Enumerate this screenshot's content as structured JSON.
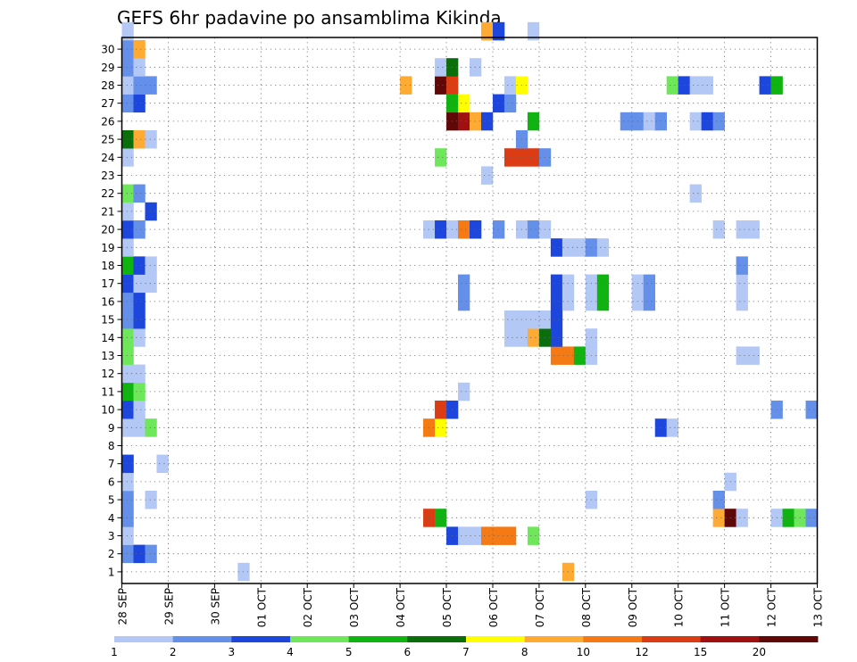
{
  "chart_data": {
    "type": "heatmap",
    "title": "GEFS 6hr padavine po ansamblima Kikinda",
    "xlabel": "",
    "ylabel": "",
    "x_tick_labels": [
      "28 SEP",
      "29 SEP",
      "30 SEP",
      "01 OCT",
      "02 OCT",
      "03 OCT",
      "04 OCT",
      "05 OCT",
      "06 OCT",
      "07 OCT",
      "08 OCT",
      "09 OCT",
      "10 OCT",
      "11 OCT",
      "12 OCT",
      "13 OCT"
    ],
    "y_tick_labels": [
      "1",
      "2",
      "3",
      "4",
      "5",
      "6",
      "7",
      "8",
      "9",
      "10",
      "11",
      "12",
      "13",
      "14",
      "15",
      "16",
      "17",
      "18",
      "19",
      "20",
      "21",
      "22",
      "23",
      "24",
      "25",
      "26",
      "27",
      "28",
      "29",
      "30"
    ],
    "x_range_steps": [
      0,
      60
    ],
    "y_range": [
      0,
      30
    ],
    "grid": true,
    "colorbar": {
      "labels": [
        "1",
        "2",
        "3",
        "4",
        "5",
        "6",
        "7",
        "8",
        "10",
        "12",
        "15",
        "20"
      ],
      "colors": [
        "#b4c8f5",
        "#6490ea",
        "#1c46dc",
        "#6ee85a",
        "#10b410",
        "#0a6e0a",
        "#ffff00",
        "#ffaa32",
        "#f57a14",
        "#dc3c14",
        "#a01010",
        "#600808"
      ]
    },
    "cells": [
      {
        "m": 1,
        "t": 0,
        "c": 1
      },
      {
        "m": 1,
        "t": 1,
        "c": 2
      },
      {
        "m": 1,
        "t": 2,
        "c": 1
      },
      {
        "m": 2,
        "t": 0,
        "c": 0
      },
      {
        "m": 2,
        "t": 28,
        "c": 2
      },
      {
        "m": 2,
        "t": 29,
        "c": 0
      },
      {
        "m": 2,
        "t": 30,
        "c": 0
      },
      {
        "m": 2,
        "t": 31,
        "c": 8
      },
      {
        "m": 2,
        "t": 32,
        "c": 8
      },
      {
        "m": 2,
        "t": 33,
        "c": 8
      },
      {
        "m": 2,
        "t": 35,
        "c": 3
      },
      {
        "m": 3,
        "t": 0,
        "c": 1
      },
      {
        "m": 3,
        "t": 26,
        "c": 9
      },
      {
        "m": 3,
        "t": 27,
        "c": 4
      },
      {
        "m": 3,
        "t": 51,
        "c": 7
      },
      {
        "m": 3,
        "t": 52,
        "c": 11
      },
      {
        "m": 3,
        "t": 53,
        "c": 0
      },
      {
        "m": 3,
        "t": 56,
        "c": 0
      },
      {
        "m": 3,
        "t": 57,
        "c": 4
      },
      {
        "m": 3,
        "t": 58,
        "c": 3
      },
      {
        "m": 3,
        "t": 59,
        "c": 1
      },
      {
        "m": 4,
        "t": 0,
        "c": 1
      },
      {
        "m": 4,
        "t": 2,
        "c": 0
      },
      {
        "m": 4,
        "t": 40,
        "c": 0
      },
      {
        "m": 4,
        "t": 51,
        "c": 1
      },
      {
        "m": 5,
        "t": 0,
        "c": 0
      },
      {
        "m": 5,
        "t": 52,
        "c": 0
      },
      {
        "m": 6,
        "t": 0,
        "c": 2
      },
      {
        "m": 6,
        "t": 3,
        "c": 0
      },
      {
        "m": 8,
        "t": 0,
        "c": 0
      },
      {
        "m": 8,
        "t": 1,
        "c": 0
      },
      {
        "m": 8,
        "t": 2,
        "c": 3
      },
      {
        "m": 8,
        "t": 26,
        "c": 8
      },
      {
        "m": 8,
        "t": 27,
        "c": 6
      },
      {
        "m": 8,
        "t": 46,
        "c": 2
      },
      {
        "m": 8,
        "t": 47,
        "c": 0
      },
      {
        "m": 9,
        "t": 0,
        "c": 2
      },
      {
        "m": 9,
        "t": 1,
        "c": 0
      },
      {
        "m": 9,
        "t": 27,
        "c": 9
      },
      {
        "m": 9,
        "t": 28,
        "c": 2
      },
      {
        "m": 9,
        "t": 56,
        "c": 1
      },
      {
        "m": 9,
        "t": 59,
        "c": 1
      },
      {
        "m": 10,
        "t": 0,
        "c": 4
      },
      {
        "m": 10,
        "t": 1,
        "c": 3
      },
      {
        "m": 10,
        "t": 29,
        "c": 0
      },
      {
        "m": 11,
        "t": 0,
        "c": 0
      },
      {
        "m": 11,
        "t": 1,
        "c": 0
      },
      {
        "m": 12,
        "t": 0,
        "c": 3
      },
      {
        "m": 12,
        "t": 37,
        "c": 8
      },
      {
        "m": 12,
        "t": 38,
        "c": 8
      },
      {
        "m": 12,
        "t": 39,
        "c": 4
      },
      {
        "m": 12,
        "t": 40,
        "c": 0
      },
      {
        "m": 12,
        "t": 53,
        "c": 0
      },
      {
        "m": 12,
        "t": 54,
        "c": 0
      },
      {
        "m": 13,
        "t": 0,
        "c": 3
      },
      {
        "m": 13,
        "t": 1,
        "c": 0
      },
      {
        "m": 13,
        "t": 33,
        "c": 0
      },
      {
        "m": 13,
        "t": 34,
        "c": 0
      },
      {
        "m": 13,
        "t": 35,
        "c": 7
      },
      {
        "m": 13,
        "t": 36,
        "c": 5
      },
      {
        "m": 13,
        "t": 37,
        "c": 2
      },
      {
        "m": 13,
        "t": 40,
        "c": 0
      },
      {
        "m": 14,
        "t": 0,
        "c": 1
      },
      {
        "m": 14,
        "t": 1,
        "c": 2
      },
      {
        "m": 14,
        "t": 33,
        "c": 0
      },
      {
        "m": 14,
        "t": 34,
        "c": 0
      },
      {
        "m": 14,
        "t": 35,
        "c": 0
      },
      {
        "m": 14,
        "t": 36,
        "c": 0
      },
      {
        "m": 14,
        "t": 37,
        "c": 2
      },
      {
        "m": 15,
        "t": 0,
        "c": 1
      },
      {
        "m": 15,
        "t": 1,
        "c": 2
      },
      {
        "m": 15,
        "t": 29,
        "c": 1
      },
      {
        "m": 15,
        "t": 37,
        "c": 2
      },
      {
        "m": 15,
        "t": 38,
        "c": 0
      },
      {
        "m": 15,
        "t": 40,
        "c": 0
      },
      {
        "m": 15,
        "t": 41,
        "c": 4
      },
      {
        "m": 15,
        "t": 44,
        "c": 0
      },
      {
        "m": 15,
        "t": 45,
        "c": 1
      },
      {
        "m": 15,
        "t": 53,
        "c": 0
      },
      {
        "m": 16,
        "t": 0,
        "c": 2
      },
      {
        "m": 16,
        "t": 1,
        "c": 0
      },
      {
        "m": 16,
        "t": 2,
        "c": 0
      },
      {
        "m": 16,
        "t": 29,
        "c": 1
      },
      {
        "m": 16,
        "t": 37,
        "c": 2
      },
      {
        "m": 16,
        "t": 38,
        "c": 0
      },
      {
        "m": 16,
        "t": 40,
        "c": 0
      },
      {
        "m": 16,
        "t": 41,
        "c": 4
      },
      {
        "m": 16,
        "t": 44,
        "c": 0
      },
      {
        "m": 16,
        "t": 45,
        "c": 1
      },
      {
        "m": 16,
        "t": 53,
        "c": 0
      },
      {
        "m": 17,
        "t": 0,
        "c": 4
      },
      {
        "m": 17,
        "t": 1,
        "c": 2
      },
      {
        "m": 17,
        "t": 2,
        "c": 0
      },
      {
        "m": 17,
        "t": 53,
        "c": 1
      },
      {
        "m": 18,
        "t": 0,
        "c": 0
      },
      {
        "m": 18,
        "t": 37,
        "c": 2
      },
      {
        "m": 18,
        "t": 38,
        "c": 0
      },
      {
        "m": 18,
        "t": 39,
        "c": 0
      },
      {
        "m": 18,
        "t": 40,
        "c": 1
      },
      {
        "m": 18,
        "t": 41,
        "c": 0
      },
      {
        "m": 19,
        "t": 0,
        "c": 2
      },
      {
        "m": 19,
        "t": 1,
        "c": 1
      },
      {
        "m": 19,
        "t": 26,
        "c": 0
      },
      {
        "m": 19,
        "t": 27,
        "c": 2
      },
      {
        "m": 19,
        "t": 28,
        "c": 0
      },
      {
        "m": 19,
        "t": 29,
        "c": 8
      },
      {
        "m": 19,
        "t": 30,
        "c": 2
      },
      {
        "m": 19,
        "t": 32,
        "c": 1
      },
      {
        "m": 19,
        "t": 34,
        "c": 0
      },
      {
        "m": 19,
        "t": 35,
        "c": 1
      },
      {
        "m": 19,
        "t": 36,
        "c": 0
      },
      {
        "m": 19,
        "t": 51,
        "c": 0
      },
      {
        "m": 19,
        "t": 53,
        "c": 0
      },
      {
        "m": 19,
        "t": 54,
        "c": 0
      },
      {
        "m": 20,
        "t": 0,
        "c": 0
      },
      {
        "m": 20,
        "t": 2,
        "c": 2
      },
      {
        "m": 21,
        "t": 0,
        "c": 3
      },
      {
        "m": 21,
        "t": 1,
        "c": 1
      },
      {
        "m": 21,
        "t": 49,
        "c": 0
      },
      {
        "m": 22,
        "t": 31,
        "c": 0
      },
      {
        "m": 23,
        "t": 0,
        "c": 0
      },
      {
        "m": 23,
        "t": 27,
        "c": 3
      },
      {
        "m": 23,
        "t": 33,
        "c": 9
      },
      {
        "m": 23,
        "t": 34,
        "c": 9
      },
      {
        "m": 23,
        "t": 35,
        "c": 9
      },
      {
        "m": 23,
        "t": 36,
        "c": 1
      },
      {
        "m": 24,
        "t": 0,
        "c": 5
      },
      {
        "m": 24,
        "t": 1,
        "c": 7
      },
      {
        "m": 24,
        "t": 2,
        "c": 0
      },
      {
        "m": 24,
        "t": 34,
        "c": 1
      },
      {
        "m": 25,
        "t": 28,
        "c": 11
      },
      {
        "m": 25,
        "t": 29,
        "c": 10
      },
      {
        "m": 25,
        "t": 30,
        "c": 7
      },
      {
        "m": 25,
        "t": 31,
        "c": 2
      },
      {
        "m": 25,
        "t": 35,
        "c": 4
      },
      {
        "m": 25,
        "t": 43,
        "c": 1
      },
      {
        "m": 25,
        "t": 44,
        "c": 1
      },
      {
        "m": 25,
        "t": 45,
        "c": 0
      },
      {
        "m": 25,
        "t": 46,
        "c": 1
      },
      {
        "m": 25,
        "t": 49,
        "c": 0
      },
      {
        "m": 25,
        "t": 50,
        "c": 2
      },
      {
        "m": 25,
        "t": 51,
        "c": 1
      },
      {
        "m": 26,
        "t": 0,
        "c": 1
      },
      {
        "m": 26,
        "t": 1,
        "c": 2
      },
      {
        "m": 26,
        "t": 28,
        "c": 4
      },
      {
        "m": 26,
        "t": 29,
        "c": 6
      },
      {
        "m": 26,
        "t": 32,
        "c": 2
      },
      {
        "m": 26,
        "t": 33,
        "c": 1
      },
      {
        "m": 27,
        "t": 0,
        "c": 0
      },
      {
        "m": 27,
        "t": 1,
        "c": 1
      },
      {
        "m": 27,
        "t": 2,
        "c": 1
      },
      {
        "m": 27,
        "t": 24,
        "c": 7
      },
      {
        "m": 27,
        "t": 27,
        "c": 11
      },
      {
        "m": 27,
        "t": 28,
        "c": 9
      },
      {
        "m": 27,
        "t": 33,
        "c": 0
      },
      {
        "m": 27,
        "t": 34,
        "c": 6
      },
      {
        "m": 27,
        "t": 47,
        "c": 3
      },
      {
        "m": 27,
        "t": 48,
        "c": 2
      },
      {
        "m": 27,
        "t": 49,
        "c": 0
      },
      {
        "m": 27,
        "t": 50,
        "c": 0
      },
      {
        "m": 27,
        "t": 55,
        "c": 2
      },
      {
        "m": 27,
        "t": 56,
        "c": 4
      },
      {
        "m": 28,
        "t": 0,
        "c": 1
      },
      {
        "m": 28,
        "t": 1,
        "c": 0
      },
      {
        "m": 28,
        "t": 27,
        "c": 0
      },
      {
        "m": 28,
        "t": 28,
        "c": 5
      },
      {
        "m": 28,
        "t": 30,
        "c": 0
      },
      {
        "m": 29,
        "t": 0,
        "c": 1
      },
      {
        "m": 29,
        "t": 1,
        "c": 7
      },
      {
        "m": 30,
        "t": 0,
        "c": 0
      },
      {
        "m": 30,
        "t": 31,
        "c": 7
      },
      {
        "m": 30,
        "t": 32,
        "c": 2
      },
      {
        "m": 30,
        "t": 35,
        "c": 0
      },
      {
        "m": 0,
        "t": 10,
        "c": 0
      },
      {
        "m": 0,
        "t": 38,
        "c": 7
      }
    ]
  }
}
